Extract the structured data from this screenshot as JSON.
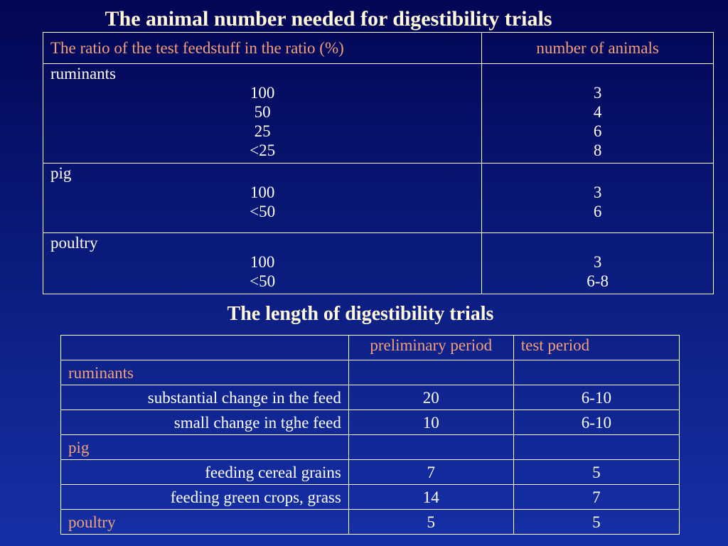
{
  "title1": "The animal number needed for digestibility trials",
  "title2": "The length of digestibility trials",
  "table1": {
    "headers": [
      "The ratio of the test feedstuff in the ratio (%)",
      "number of animals"
    ],
    "groups": [
      {
        "label": "ruminants",
        "ratios": [
          "100",
          "50",
          "25",
          "<25"
        ],
        "animals": [
          "3",
          "4",
          "6",
          "8"
        ]
      },
      {
        "label": "pig",
        "ratios": [
          "100",
          "<50"
        ],
        "animals": [
          "3",
          "6"
        ]
      },
      {
        "label": "poultry",
        "ratios": [
          "100",
          "<50"
        ],
        "animals": [
          "3",
          "6-8"
        ]
      }
    ]
  },
  "table2": {
    "headers": [
      "",
      "preliminary period",
      "test period"
    ],
    "rows": [
      {
        "label": "ruminants",
        "prelim": "",
        "test": ""
      },
      {
        "label": "substantial change in the feed",
        "prelim": "20",
        "test": "6-10"
      },
      {
        "label": "small change in tghe feed",
        "prelim": "10",
        "test": "6-10"
      },
      {
        "label": "pig",
        "prelim": "",
        "test": ""
      },
      {
        "label": "feeding cereal grains",
        "prelim": "7",
        "test": "5"
      },
      {
        "label": "feeding green crops, grass",
        "prelim": "14",
        "test": "7"
      },
      {
        "label": "poultry",
        "prelim": "5",
        "test": "5"
      }
    ]
  }
}
